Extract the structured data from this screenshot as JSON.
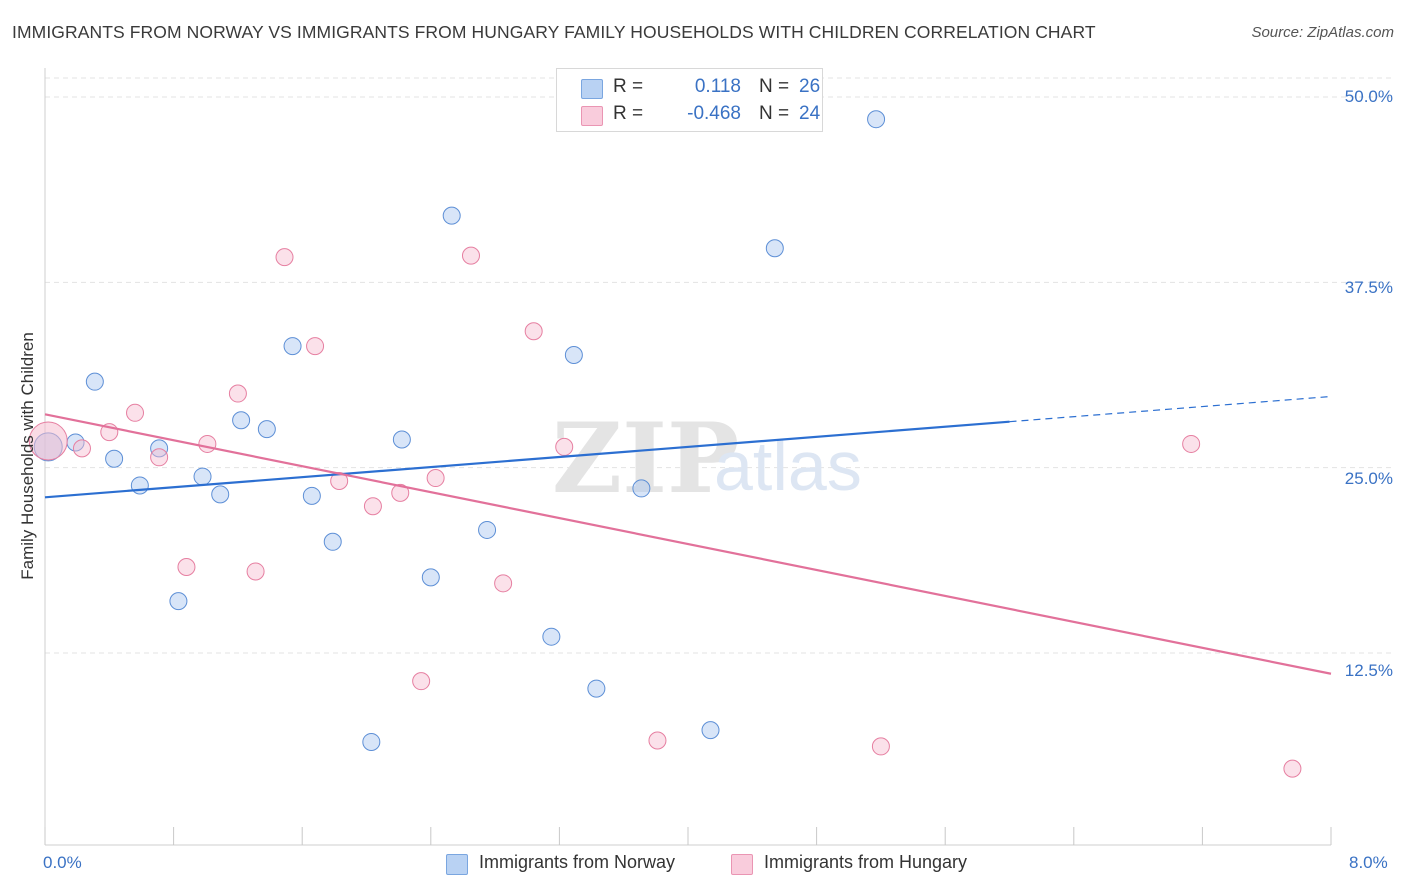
{
  "chart_data": {
    "type": "scatter",
    "title": "IMMIGRANTS FROM NORWAY VS IMMIGRANTS FROM HUNGARY FAMILY HOUSEHOLDS WITH CHILDREN CORRELATION CHART",
    "source": "Source: ZipAtlas.com",
    "watermark": "ZIPatlas",
    "ylabel": "Family Households with Children",
    "xlim": [
      0,
      8
    ],
    "ylim": [
      0,
      52
    ],
    "x_tick_labels": [
      "0.0%",
      "8.0%"
    ],
    "y_ticks": [
      12.5,
      25.0,
      37.5,
      50.0
    ],
    "y_tick_labels": [
      "12.5%",
      "25.0%",
      "37.5%",
      "50.0%"
    ],
    "grid": true,
    "legend": {
      "placement": "top-center",
      "rows": [
        {
          "r_label": "R =",
          "r_value": "0.118",
          "n_label": "N =",
          "n_value": "26"
        },
        {
          "r_label": "R =",
          "r_value": "-0.468",
          "n_label": "N =",
          "n_value": "24"
        }
      ]
    },
    "series": [
      {
        "name": "Immigrants from Norway",
        "color": "#a9c6ef",
        "edge": "#5d8fd6",
        "line_color": "#2c6fd1",
        "points": [
          [
            0.02,
            26.4
          ],
          [
            0.19,
            26.7
          ],
          [
            0.31,
            30.8
          ],
          [
            0.43,
            25.6
          ],
          [
            0.59,
            23.8
          ],
          [
            0.71,
            26.3
          ],
          [
            0.83,
            16.0
          ],
          [
            0.98,
            24.4
          ],
          [
            1.09,
            23.2
          ],
          [
            1.22,
            28.2
          ],
          [
            1.38,
            27.6
          ],
          [
            1.54,
            33.2
          ],
          [
            1.66,
            23.1
          ],
          [
            1.79,
            20.0
          ],
          [
            2.03,
            6.5
          ],
          [
            2.22,
            26.9
          ],
          [
            2.4,
            17.6
          ],
          [
            2.53,
            42.0
          ],
          [
            2.75,
            20.8
          ],
          [
            3.15,
            13.6
          ],
          [
            3.29,
            32.6
          ],
          [
            3.43,
            10.1
          ],
          [
            3.71,
            23.6
          ],
          [
            4.14,
            7.3
          ],
          [
            4.54,
            39.8
          ],
          [
            5.17,
            48.5
          ]
        ],
        "trend": {
          "x_start": 0.0,
          "y_start": 23.0,
          "x_end": 6.0,
          "y_end": 28.1,
          "dash_end_x": 8.0,
          "dash_end_y": 29.8
        }
      },
      {
        "name": "Immigrants from Hungary",
        "color": "#f6bdd0",
        "edge": "#e67fa1",
        "line_color": "#e2719a",
        "points": [
          [
            0.02,
            26.8
          ],
          [
            0.23,
            26.3
          ],
          [
            0.4,
            27.4
          ],
          [
            0.56,
            28.7
          ],
          [
            0.71,
            25.7
          ],
          [
            1.01,
            26.6
          ],
          [
            0.88,
            18.3
          ],
          [
            1.2,
            30.0
          ],
          [
            1.31,
            18.0
          ],
          [
            1.49,
            39.2
          ],
          [
            1.68,
            33.2
          ],
          [
            1.83,
            24.1
          ],
          [
            2.04,
            22.4
          ],
          [
            2.21,
            23.3
          ],
          [
            2.34,
            10.6
          ],
          [
            2.43,
            24.3
          ],
          [
            2.65,
            39.3
          ],
          [
            2.85,
            17.2
          ],
          [
            3.04,
            34.2
          ],
          [
            3.23,
            26.4
          ],
          [
            3.81,
            6.6
          ],
          [
            5.2,
            6.2
          ],
          [
            7.13,
            26.6
          ],
          [
            7.76,
            4.7
          ]
        ],
        "trend": {
          "x_start": 0.0,
          "y_start": 28.6,
          "x_end": 8.0,
          "y_end": 11.1
        }
      }
    ]
  }
}
